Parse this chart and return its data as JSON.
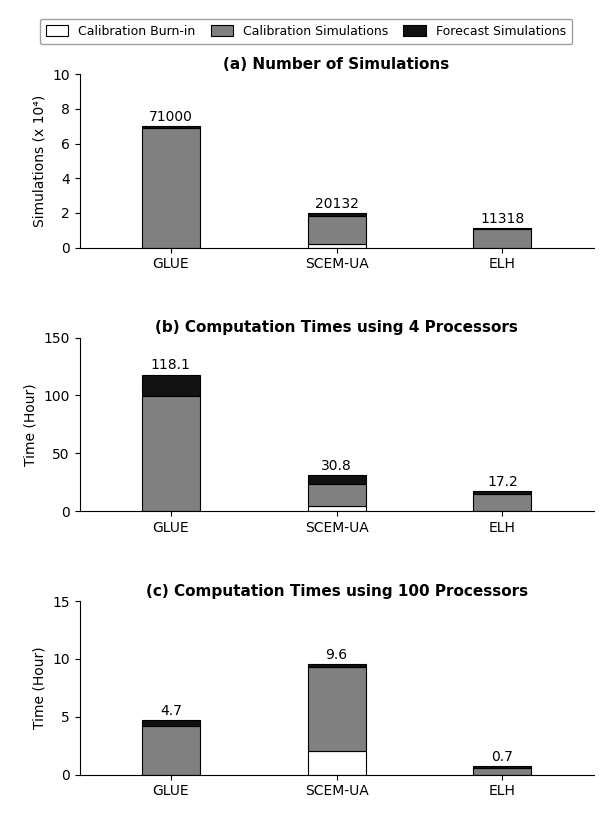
{
  "categories": [
    "GLUE",
    "SCEM-UA",
    "ELH"
  ],
  "legend_labels": [
    "Calibration Burn-in",
    "Calibration Simulations",
    "Forecast Simulations"
  ],
  "panel_a": {
    "title": "(a) Number of Simulations",
    "ylabel": "Simulations (x 10⁴)",
    "ylim": [
      0,
      10
    ],
    "yticks": [
      0,
      2,
      4,
      6,
      8,
      10
    ],
    "burnin": [
      0,
      0.2,
      0
    ],
    "calib": [
      6.9,
      1.6,
      1.05
    ],
    "forecast": [
      0.1,
      0.2,
      0.08
    ],
    "labels": [
      "71000",
      "20132",
      "11318"
    ]
  },
  "panel_b": {
    "title": "(b) Computation Times using 4 Processors",
    "ylabel": "Time (Hour)",
    "ylim": [
      0,
      150
    ],
    "yticks": [
      0,
      50,
      100,
      150
    ],
    "burnin": [
      0,
      4.5,
      0
    ],
    "calib": [
      99.5,
      19.3,
      14.5
    ],
    "forecast": [
      18.6,
      7.0,
      2.7
    ],
    "labels": [
      "118.1",
      "30.8",
      "17.2"
    ]
  },
  "panel_c": {
    "title": "(c) Computation Times using 100 Processors",
    "ylabel": "Time (Hour)",
    "ylim": [
      0,
      15
    ],
    "yticks": [
      0,
      5,
      10,
      15
    ],
    "burnin": [
      0,
      2.0,
      0
    ],
    "calib": [
      4.2,
      7.3,
      0.55
    ],
    "forecast": [
      0.5,
      0.3,
      0.15
    ],
    "labels": [
      "4.7",
      "9.6",
      "0.7"
    ]
  },
  "bar_width": 0.35,
  "color_burnin": "#ffffff",
  "color_calib": "#808080",
  "color_forecast": "#111111",
  "edgecolor": "#000000",
  "title_fontsize": 11,
  "label_fontsize": 10,
  "tick_fontsize": 10,
  "annot_fontsize": 10,
  "legend_fontsize": 9
}
